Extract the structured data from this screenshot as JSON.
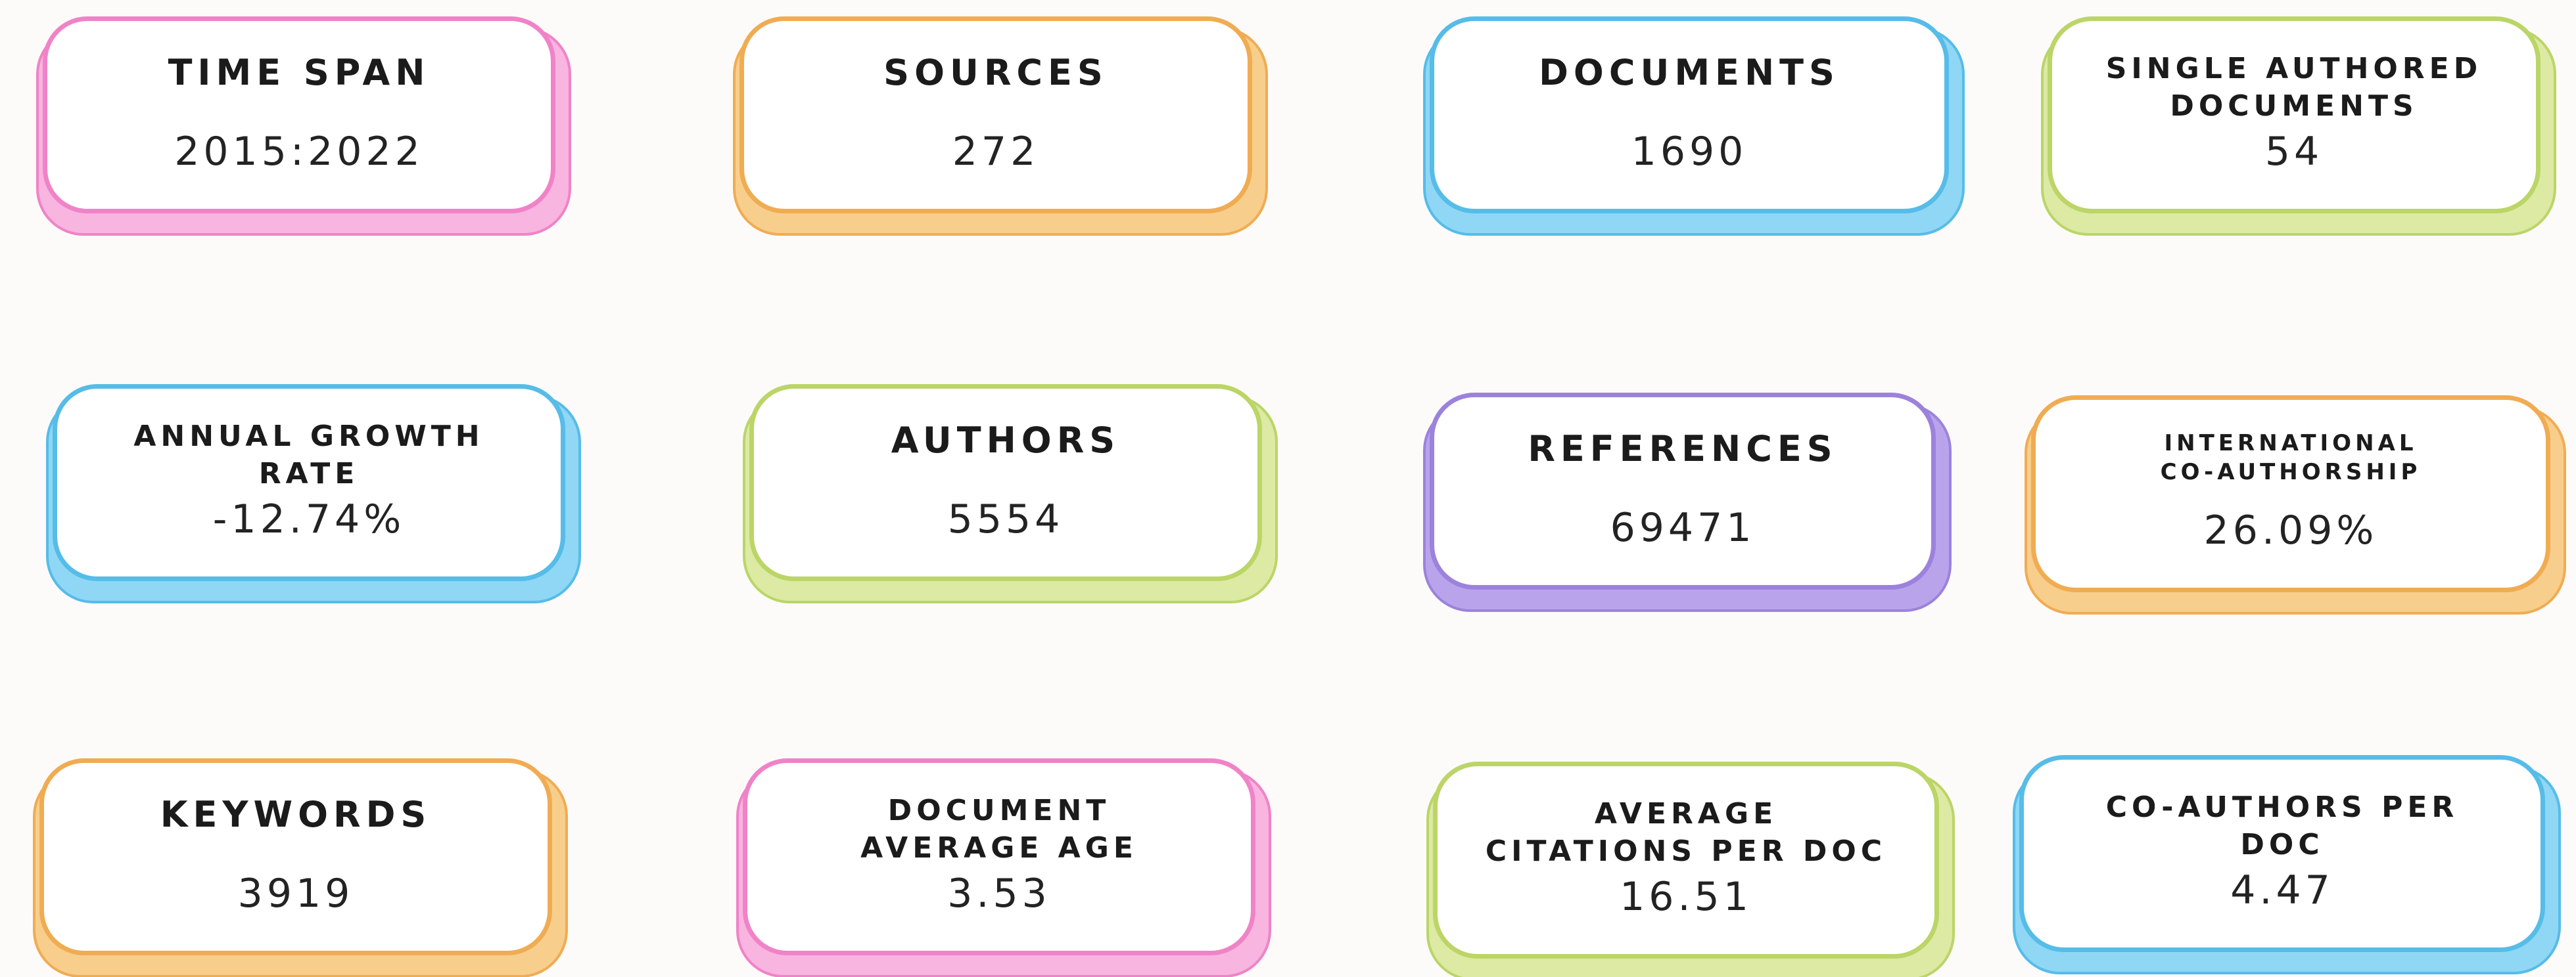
{
  "page": {
    "description": "Bibliometric main information summary cards",
    "background_color": "#fcfbfa",
    "text_color": "#1b1b1b"
  },
  "palette": {
    "pink": {
      "main": "#F083C7",
      "light": "#F7B5E0"
    },
    "orange": {
      "main": "#F0AC52",
      "light": "#F8CE8C"
    },
    "blue": {
      "main": "#56BCE8",
      "light": "#8FD7F5"
    },
    "green": {
      "main": "#BBD567",
      "light": "#DCEAA4"
    },
    "purple": {
      "main": "#9C82DC",
      "light": "#B9A4EC"
    }
  },
  "cards": [
    {
      "title": "TIME SPAN",
      "value": "2015:2022",
      "color": "pink"
    },
    {
      "title": "SOURCES",
      "value": "272",
      "color": "orange"
    },
    {
      "title": "DOCUMENTS",
      "value": "1690",
      "color": "blue"
    },
    {
      "title": "SINGLE AUTHORED\nDOCUMENTS",
      "value": "54",
      "color": "green"
    },
    {
      "title": "ANNUAL GROWTH\nRATE",
      "value": "-12.74%",
      "color": "blue"
    },
    {
      "title": "AUTHORS",
      "value": "5554",
      "color": "green"
    },
    {
      "title": "REFERENCES",
      "value": "69471",
      "color": "purple"
    },
    {
      "title": "INTERNATIONAL\nCO-AUTHORSHIP",
      "value": "26.09%",
      "color": "orange"
    },
    {
      "title": "KEYWORDS",
      "value": "3919",
      "color": "orange"
    },
    {
      "title": "DOCUMENT\nAVERAGE AGE",
      "value": "3.53",
      "color": "pink"
    },
    {
      "title": "AVERAGE\nCITATIONS PER DOC",
      "value": "16.51",
      "color": "green"
    },
    {
      "title": "CO-AUTHORS PER\nDOC",
      "value": "4.47",
      "color": "blue"
    }
  ],
  "chart_data": {
    "type": "table",
    "title": "Main Information",
    "metrics": [
      {
        "label": "Time span",
        "value": "2015:2022"
      },
      {
        "label": "Sources",
        "value": 272
      },
      {
        "label": "Documents",
        "value": 1690
      },
      {
        "label": "Single authored documents",
        "value": 54
      },
      {
        "label": "Annual growth rate",
        "value": "-12.74%"
      },
      {
        "label": "Authors",
        "value": 5554
      },
      {
        "label": "References",
        "value": 69471
      },
      {
        "label": "International co-authorship",
        "value": "26.09%"
      },
      {
        "label": "Keywords",
        "value": 3919
      },
      {
        "label": "Document average age",
        "value": 3.53
      },
      {
        "label": "Average citations per doc",
        "value": 16.51
      },
      {
        "label": "Co-authors per doc",
        "value": 4.47
      }
    ],
    "layout": {
      "grid": "4 columns x 3 rows",
      "legend": "none",
      "grid_lines": false
    }
  }
}
